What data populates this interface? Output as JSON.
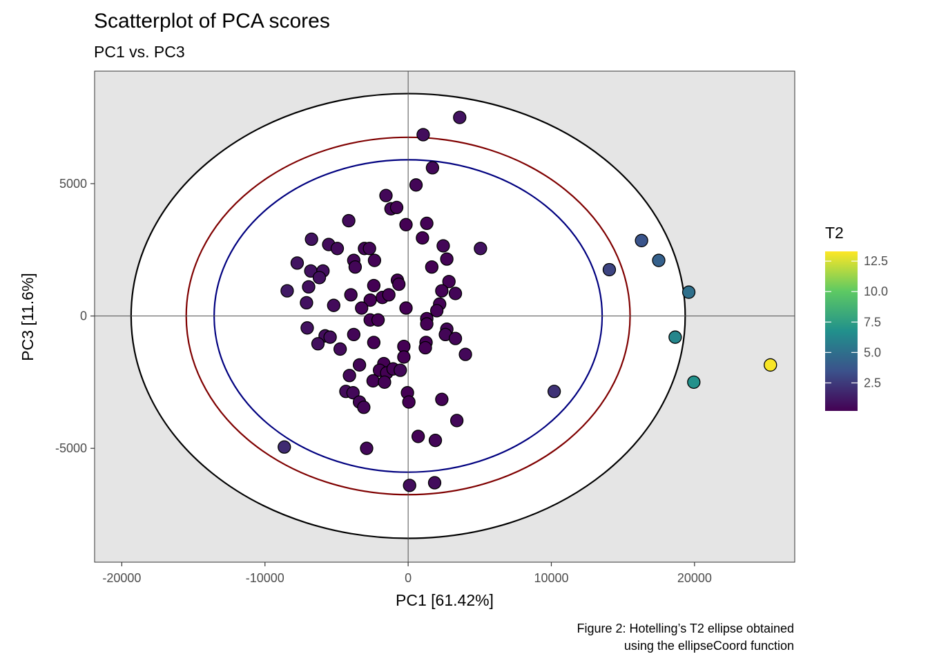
{
  "chart_data": {
    "type": "scatter",
    "title": "Scatterplot of PCA scores",
    "subtitle": "PC1 vs. PC3",
    "xlabel": "PC1 [61.42%]",
    "ylabel": "PC3 [11.6%]",
    "caption_lines": [
      "Figure 2: Hotelling’s T2 ellipse obtained",
      "using the ellipseCoord function"
    ],
    "xlim": [
      -21900,
      27000
    ],
    "ylim": [
      -9300,
      9250
    ],
    "x_ticks": [
      -20000,
      -10000,
      0,
      10000,
      20000
    ],
    "x_tick_labels": [
      "-20000",
      "-10000",
      "0",
      "10000",
      "20000"
    ],
    "y_ticks": [
      -5000,
      0,
      5000
    ],
    "y_tick_labels": [
      "-5000",
      "0",
      "5000"
    ],
    "grid": false,
    "panel_background": "#e5e5e5",
    "reference_lines": {
      "x": 0,
      "y": 0,
      "color": "#4d4d4d"
    },
    "ellipses": [
      {
        "rx": 19350,
        "ry": 8400,
        "color": "#000000"
      },
      {
        "rx": 15500,
        "ry": 6750,
        "color": "#7f0000"
      },
      {
        "rx": 13550,
        "ry": 5900,
        "color": "#00007f"
      }
    ],
    "color_scale": {
      "title": "T2",
      "min": 0.2,
      "max": 13.3,
      "ticks": [
        2.5,
        5.0,
        7.5,
        10.0,
        12.5
      ],
      "tick_labels": [
        "2.5",
        "5.0",
        "7.5",
        "10.0",
        "12.5"
      ],
      "stops": [
        "#440154",
        "#3b528b",
        "#21908c",
        "#5dc963",
        "#fde725"
      ]
    },
    "points": [
      {
        "x": 3600,
        "y": 7500,
        "t2": 0.9
      },
      {
        "x": 1050,
        "y": 6850,
        "t2": 0.7
      },
      {
        "x": 1700,
        "y": 5600,
        "t2": 0.5
      },
      {
        "x": 550,
        "y": 4950,
        "t2": 0.4
      },
      {
        "x": -1550,
        "y": 4550,
        "t2": 0.5
      },
      {
        "x": -1200,
        "y": 4050,
        "t2": 0.4
      },
      {
        "x": -800,
        "y": 4100,
        "t2": 0.3
      },
      {
        "x": -4150,
        "y": 3600,
        "t2": 0.6
      },
      {
        "x": -150,
        "y": 3450,
        "t2": 0.2
      },
      {
        "x": 1300,
        "y": 3500,
        "t2": 0.3
      },
      {
        "x": -6750,
        "y": 2900,
        "t2": 0.9
      },
      {
        "x": -5550,
        "y": 2700,
        "t2": 0.7
      },
      {
        "x": -4950,
        "y": 2550,
        "t2": 0.6
      },
      {
        "x": -3050,
        "y": 2550,
        "t2": 0.4
      },
      {
        "x": -2700,
        "y": 2550,
        "t2": 0.4
      },
      {
        "x": 1000,
        "y": 2950,
        "t2": 0.2
      },
      {
        "x": 2450,
        "y": 2650,
        "t2": 0.4
      },
      {
        "x": 5050,
        "y": 2550,
        "t2": 0.9
      },
      {
        "x": -3800,
        "y": 2100,
        "t2": 0.4
      },
      {
        "x": -2350,
        "y": 2100,
        "t2": 0.3
      },
      {
        "x": 2700,
        "y": 2150,
        "t2": 0.3
      },
      {
        "x": -7750,
        "y": 2000,
        "t2": 1.0
      },
      {
        "x": -6800,
        "y": 1700,
        "t2": 0.9
      },
      {
        "x": -5950,
        "y": 1700,
        "t2": 0.8
      },
      {
        "x": -3700,
        "y": 1850,
        "t2": 0.4
      },
      {
        "x": 1650,
        "y": 1850,
        "t2": 0.2
      },
      {
        "x": -6200,
        "y": 1450,
        "t2": 0.8
      },
      {
        "x": -6950,
        "y": 1100,
        "t2": 0.8
      },
      {
        "x": -8450,
        "y": 950,
        "t2": 1.2
      },
      {
        "x": -2400,
        "y": 1150,
        "t2": 0.2
      },
      {
        "x": -750,
        "y": 1350,
        "t2": 0.2
      },
      {
        "x": -650,
        "y": 1200,
        "t2": 0.2
      },
      {
        "x": 2850,
        "y": 1300,
        "t2": 0.3
      },
      {
        "x": 2350,
        "y": 950,
        "t2": 0.3
      },
      {
        "x": -4000,
        "y": 800,
        "t2": 0.4
      },
      {
        "x": -1800,
        "y": 700,
        "t2": 0.2
      },
      {
        "x": -1350,
        "y": 800,
        "t2": 0.2
      },
      {
        "x": -2650,
        "y": 600,
        "t2": 0.2
      },
      {
        "x": 3300,
        "y": 850,
        "t2": 0.4
      },
      {
        "x": -7100,
        "y": 500,
        "t2": 0.9
      },
      {
        "x": -5200,
        "y": 400,
        "t2": 0.6
      },
      {
        "x": -3250,
        "y": 300,
        "t2": 0.3
      },
      {
        "x": -150,
        "y": 300,
        "t2": 0.1
      },
      {
        "x": 2200,
        "y": 450,
        "t2": 0.3
      },
      {
        "x": 2000,
        "y": 200,
        "t2": 0.3
      },
      {
        "x": 1300,
        "y": -100,
        "t2": 0.2
      },
      {
        "x": -2650,
        "y": -150,
        "t2": 0.2
      },
      {
        "x": -2100,
        "y": -150,
        "t2": 0.2
      },
      {
        "x": 1300,
        "y": -300,
        "t2": 0.2
      },
      {
        "x": -7050,
        "y": -450,
        "t2": 0.9
      },
      {
        "x": 2700,
        "y": -500,
        "t2": 0.4
      },
      {
        "x": -5800,
        "y": -750,
        "t2": 0.7
      },
      {
        "x": -5450,
        "y": -800,
        "t2": 0.7
      },
      {
        "x": -3800,
        "y": -700,
        "t2": 0.4
      },
      {
        "x": 2600,
        "y": -700,
        "t2": 0.4
      },
      {
        "x": 3300,
        "y": -850,
        "t2": 0.4
      },
      {
        "x": -6300,
        "y": -1050,
        "t2": 0.8
      },
      {
        "x": -2400,
        "y": -1000,
        "t2": 0.2
      },
      {
        "x": 1250,
        "y": -1000,
        "t2": 0.2
      },
      {
        "x": -300,
        "y": -1150,
        "t2": 0.1
      },
      {
        "x": 1200,
        "y": -1200,
        "t2": 0.2
      },
      {
        "x": -4750,
        "y": -1250,
        "t2": 0.6
      },
      {
        "x": 4000,
        "y": -1450,
        "t2": 0.5
      },
      {
        "x": -300,
        "y": -1550,
        "t2": 0.1
      },
      {
        "x": -3400,
        "y": -1850,
        "t2": 0.4
      },
      {
        "x": -1700,
        "y": -1800,
        "t2": 0.2
      },
      {
        "x": -2000,
        "y": -2050,
        "t2": 0.2
      },
      {
        "x": -1500,
        "y": -2150,
        "t2": 0.2
      },
      {
        "x": -1050,
        "y": -2000,
        "t2": 0.3
      },
      {
        "x": -4100,
        "y": -2250,
        "t2": 0.5
      },
      {
        "x": -2450,
        "y": -2450,
        "t2": 0.3
      },
      {
        "x": -1650,
        "y": -2500,
        "t2": 0.3
      },
      {
        "x": -550,
        "y": -2050,
        "t2": 0.5
      },
      {
        "x": -4350,
        "y": -2850,
        "t2": 0.6
      },
      {
        "x": -3850,
        "y": -2900,
        "t2": 0.5
      },
      {
        "x": -3400,
        "y": -3250,
        "t2": 0.4
      },
      {
        "x": -3100,
        "y": -3450,
        "t2": 0.4
      },
      {
        "x": -50,
        "y": -2900,
        "t2": 0.2
      },
      {
        "x": 50,
        "y": -3250,
        "t2": 0.2
      },
      {
        "x": 2350,
        "y": -3150,
        "t2": 0.3
      },
      {
        "x": 3400,
        "y": -3950,
        "t2": 0.5
      },
      {
        "x": 10200,
        "y": -2850,
        "t2": 2.2
      },
      {
        "x": 700,
        "y": -4550,
        "t2": 0.3
      },
      {
        "x": 1900,
        "y": -4700,
        "t2": 0.4
      },
      {
        "x": -2900,
        "y": -5000,
        "t2": 0.5
      },
      {
        "x": -8650,
        "y": -4950,
        "t2": 1.9
      },
      {
        "x": 100,
        "y": -6400,
        "t2": 0.7
      },
      {
        "x": 1850,
        "y": -6300,
        "t2": 0.7
      },
      {
        "x": 14050,
        "y": 1750,
        "t2": 2.9
      },
      {
        "x": 16300,
        "y": 2850,
        "t2": 3.6
      },
      {
        "x": 17500,
        "y": 2100,
        "t2": 4.2
      },
      {
        "x": 19600,
        "y": 900,
        "t2": 5.0
      },
      {
        "x": 18650,
        "y": -800,
        "t2": 6.2
      },
      {
        "x": 19950,
        "y": -2500,
        "t2": 6.8
      },
      {
        "x": 25300,
        "y": -1850,
        "t2": 13.2
      }
    ]
  }
}
